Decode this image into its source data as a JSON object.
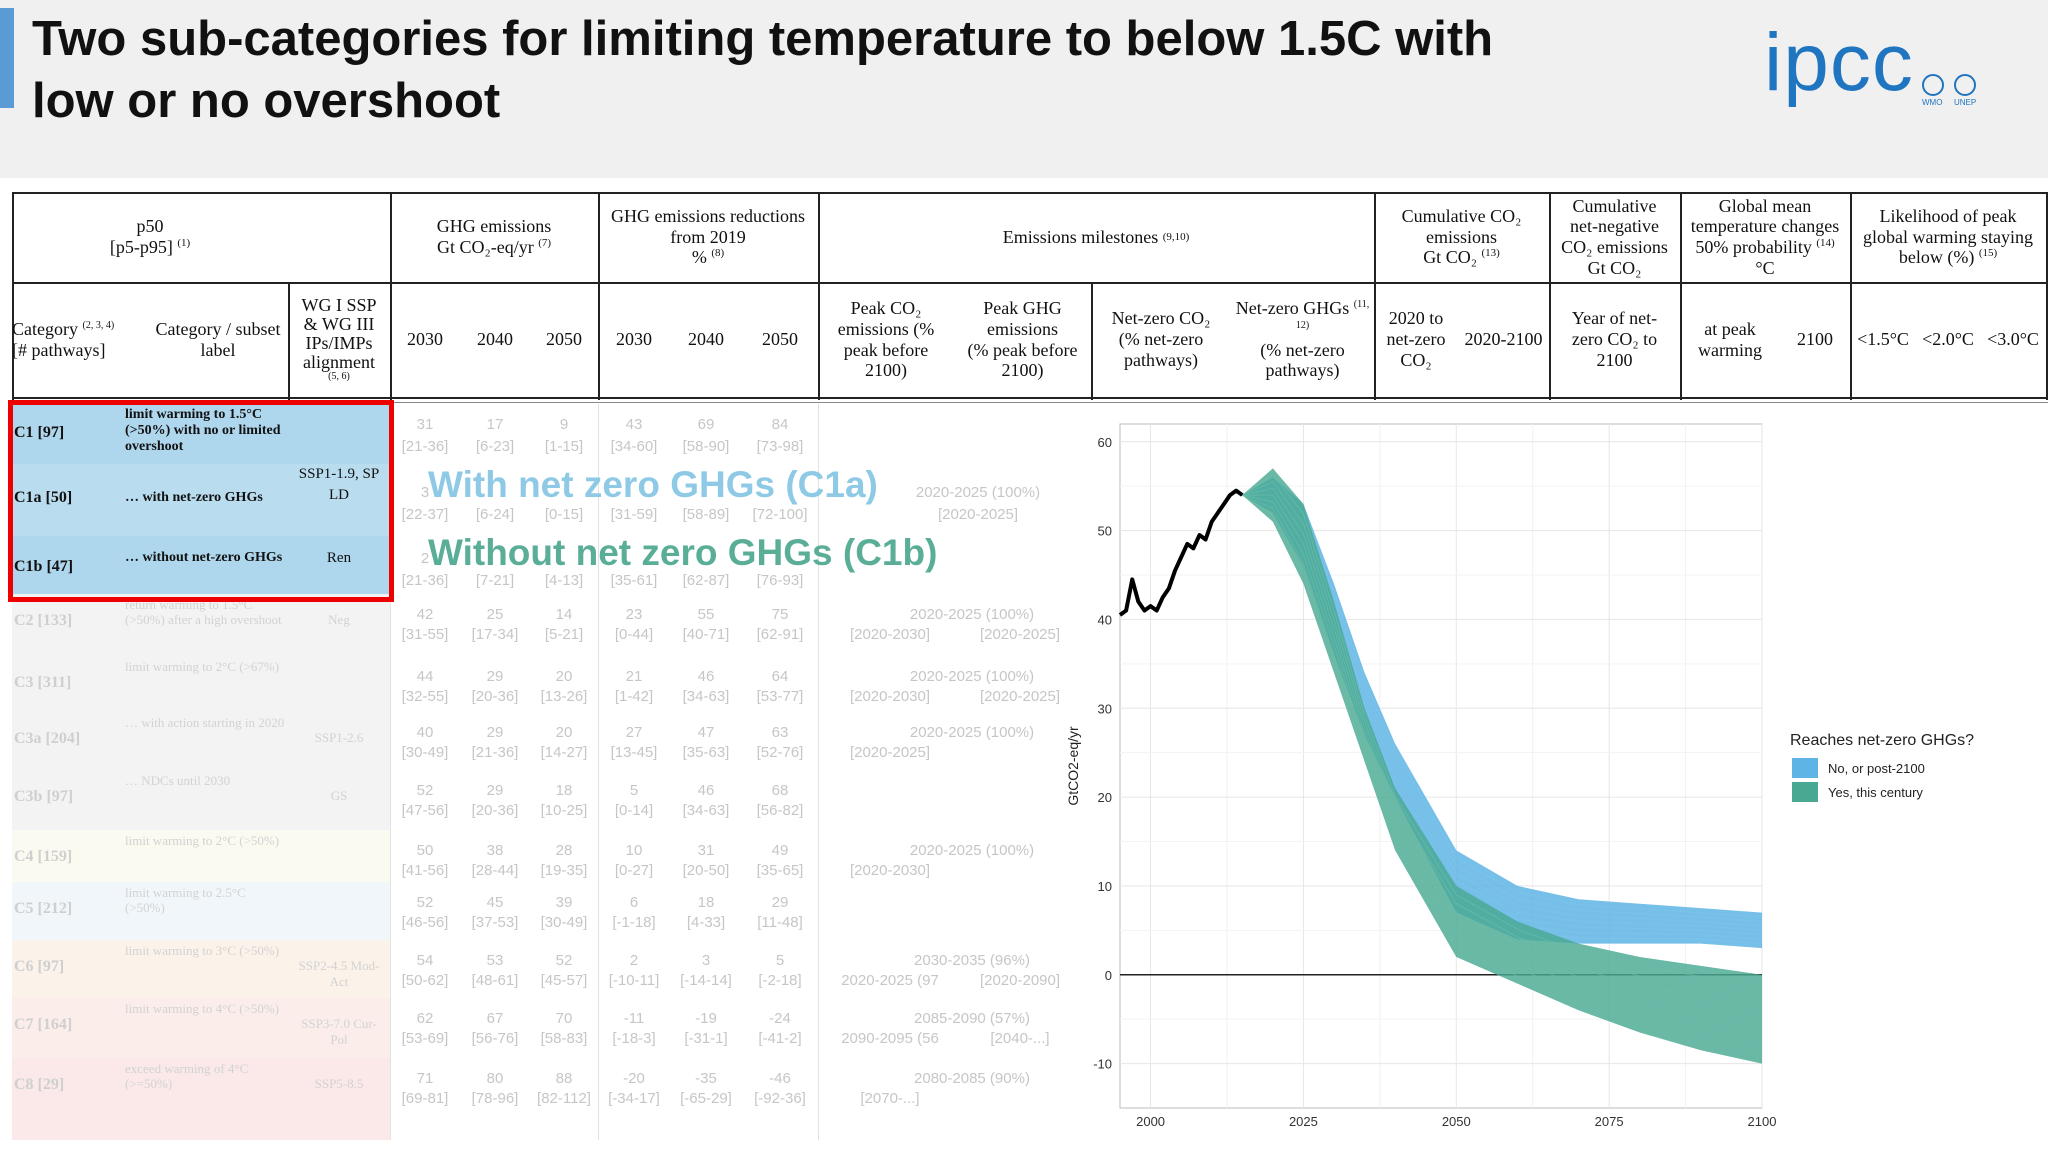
{
  "slide": {
    "title": "Two sub-categories for limiting temperature to below 1.5C with\nlow or no overshoot",
    "accent_color": "#5b9bd5",
    "logo": {
      "text": "ipcc",
      "badges": [
        "WMO",
        "UNEP"
      ],
      "color": "#1f75c0"
    }
  },
  "table": {
    "headers": {
      "p50": "p50",
      "p5p95": "[p5-p95]",
      "p5p95_note": "(1)",
      "ghg_emissions": "GHG emissions",
      "ghg_emissions_unit": "Gt CO₂-eq/yr",
      "ghg_emissions_note": "(7)",
      "ghg_reductions": "GHG emissions reductions",
      "ghg_reductions_from": "from 2019",
      "ghg_reductions_unit": "%",
      "ghg_reductions_note": "(8)",
      "milestones": "Emissions milestones",
      "milestones_note": "(9,10)",
      "cum_co2": "Cumulative CO₂",
      "cum_co2_line2": "emissions",
      "cum_co2_unit": "Gt CO₂",
      "cum_co2_note": "(13)",
      "cum_neg": "Cumulative",
      "cum_neg_line2": "net-negative",
      "cum_neg_line3": "CO₂ emissions",
      "cum_neg_unit": "Gt CO₂",
      "gmt": "Global mean",
      "gmt_line2": "temperature changes",
      "gmt_line3": "50% probability",
      "gmt_note": "(14)",
      "gmt_unit": "°C",
      "likelihood": "Likelihood of peak",
      "likelihood_line2": "global warming staying",
      "likelihood_line3": "below (%)",
      "likelihood_note": "(15)",
      "category": "Category",
      "category_note": "(2, 3, 4)",
      "pathways": "[# pathways]",
      "subset_label": "Category / subset",
      "subset_label2": "label",
      "wg": "WG I SSP",
      "wg2": "& WG III",
      "wg3": "IPs/IMPs",
      "wg4": "alignment",
      "wg_note": "(5, 6)",
      "y2030": "2030",
      "y2040": "2040",
      "y2050": "2050",
      "r2030": "2030",
      "r2040": "2040",
      "r2050": "2050",
      "peak_co2": "Peak CO₂",
      "peak_co2_2": "emissions (%",
      "peak_co2_3": "peak before",
      "peak_co2_4": "2100)",
      "peak_ghg": "Peak GHG",
      "peak_ghg_2": "emissions",
      "peak_ghg_3": "(% peak before",
      "peak_ghg_4": "2100)",
      "nz_co2": "Net-zero CO₂",
      "nz_co2_2": "(% net-zero",
      "nz_co2_3": "pathways)",
      "nz_ghg": "Net-zero GHGs",
      "nz_ghg_note": "(11, 12)",
      "nz_ghg_2": "(% net-zero",
      "nz_ghg_3": "pathways)",
      "cum_2020": "2020 to",
      "cum_2020_2": "net-zero",
      "cum_2020_3": "CO₂",
      "cum_2100": "2020-2100",
      "year_neg": "Year of net-",
      "year_neg_2": "zero CO₂ to",
      "year_neg_3": "2100",
      "at_peak": "at peak",
      "at_peak_2": "warming",
      "t2100": "2100",
      "lt15": "<1.5°C",
      "lt20": "<2.0°C",
      "lt30": "<3.0°C"
    },
    "highlight_rows": [
      {
        "category": "C1 [97]",
        "label": "limit warming to 1.5°C (>50%) with no or limited overshoot",
        "ssp": "",
        "bg": "#aed6ec"
      },
      {
        "category": "C1a [50]",
        "label": "… with net-zero GHGs",
        "ssp": "SSP1-1.9, SP LD",
        "bg": "#b9dcef"
      },
      {
        "category": "C1b [47]",
        "label": "… without net-zero GHGs",
        "ssp": "Ren",
        "bg": "#aed6ec"
      }
    ],
    "faded_rows": [
      {
        "category": "C2 [133]",
        "label": "return warming to 1.5°C (>50%) after a high overshoot",
        "ssp": "Neg",
        "bg": "#f3f3f3",
        "ghg": [
          "42",
          "25",
          "14"
        ],
        "ghg_r": [
          "[31-55]",
          "[17-34]",
          "[5-21]"
        ],
        "red": [
          "23",
          "55",
          "75"
        ],
        "red_r": [
          "[0-44]",
          "[40-71]",
          "[62-91]"
        ],
        "ms1": "2020-2025 (100%)",
        "ms2": "[2020-2030]",
        "ms3": "[2020-2025]"
      },
      {
        "category": "C3 [311]",
        "label": "limit warming to 2°C (>67%)",
        "ssp": "",
        "bg": "#f3f3f3",
        "ghg": [
          "44",
          "29",
          "20"
        ],
        "ghg_r": [
          "[32-55]",
          "[20-36]",
          "[13-26]"
        ],
        "red": [
          "21",
          "46",
          "64"
        ],
        "red_r": [
          "[1-42]",
          "[34-63]",
          "[53-77]"
        ],
        "ms1": "2020-2025 (100%)",
        "ms2": "[2020-2030]",
        "ms3": "[2020-2025]"
      },
      {
        "category": "C3a [204]",
        "label": "… with action starting in 2020",
        "ssp": "SSP1-2.6",
        "bg": "#f3f3f3",
        "ghg": [
          "40",
          "29",
          "20"
        ],
        "ghg_r": [
          "[30-49]",
          "[21-36]",
          "[14-27]"
        ],
        "red": [
          "27",
          "47",
          "63"
        ],
        "red_r": [
          "[13-45]",
          "[35-63]",
          "[52-76]"
        ],
        "ms1": "2020-2025 (100%)",
        "ms2": "[2020-2025]",
        "ms3": ""
      },
      {
        "category": "C3b [97]",
        "label": "… NDCs until 2030",
        "ssp": "GS",
        "bg": "#f3f3f3",
        "ghg": [
          "52",
          "29",
          "18"
        ],
        "ghg_r": [
          "[47-56]",
          "[20-36]",
          "[10-25]"
        ],
        "red": [
          "5",
          "46",
          "68"
        ],
        "red_r": [
          "[0-14]",
          "[34-63]",
          "[56-82]"
        ],
        "ms1": "",
        "ms2": "",
        "ms3": ""
      },
      {
        "category": "C4 [159]",
        "label": "limit warming to 2°C (>50%)",
        "ssp": "",
        "bg": "#fbfaf0",
        "ghg": [
          "50",
          "38",
          "28"
        ],
        "ghg_r": [
          "[41-56]",
          "[28-44]",
          "[19-35]"
        ],
        "red": [
          "10",
          "31",
          "49"
        ],
        "red_r": [
          "[0-27]",
          "[20-50]",
          "[35-65]"
        ],
        "ms1": "2020-2025 (100%)",
        "ms2": "[2020-2030]",
        "ms3": ""
      },
      {
        "category": "C5 [212]",
        "label": "limit warming to 2.5°C (>50%)",
        "ssp": "",
        "bg": "#f1f6fa",
        "ghg": [
          "52",
          "45",
          "39"
        ],
        "ghg_r": [
          "[46-56]",
          "[37-53]",
          "[30-49]"
        ],
        "red": [
          "6",
          "18",
          "29"
        ],
        "red_r": [
          "[-1-18]",
          "[4-33]",
          "[11-48]"
        ],
        "ms1": "",
        "ms2": "",
        "ms3": ""
      },
      {
        "category": "C6 [97]",
        "label": "limit warming to 3°C (>50%)",
        "ssp": "SSP2-4.5 Mod-Act",
        "bg": "#fbf2ea",
        "ghg": [
          "54",
          "53",
          "52"
        ],
        "ghg_r": [
          "[50-62]",
          "[48-61]",
          "[45-57]"
        ],
        "red": [
          "2",
          "3",
          "5"
        ],
        "red_r": [
          "[-10-11]",
          "[-14-14]",
          "[-2-18]"
        ],
        "ms1": "2030-2035 (96%)",
        "ms2": "2020-2025 (97",
        "ms3": "[2020-2090]"
      },
      {
        "category": "C7 [164]",
        "label": "limit warming to 4°C (>50%)",
        "ssp": "SSP3-7.0 Cur-Pol",
        "bg": "#fbeeea",
        "ghg": [
          "62",
          "67",
          "70"
        ],
        "ghg_r": [
          "[53-69]",
          "[56-76]",
          "[58-83]"
        ],
        "red": [
          "-11",
          "-19",
          "-24"
        ],
        "red_r": [
          "[-18-3]",
          "[-31-1]",
          "[-41-2]"
        ],
        "ms1": "2085-2090 (57%)",
        "ms2": "2090-2095 (56",
        "ms3": "[2040-...]"
      },
      {
        "category": "C8 [29]",
        "label": "exceed warming of 4°C (>=50%)",
        "ssp": "SSP5-8.5",
        "bg": "#fbe9e9",
        "ghg": [
          "71",
          "80",
          "88"
        ],
        "ghg_r": [
          "[69-81]",
          "[78-96]",
          "[82-112]"
        ],
        "red": [
          "-20",
          "-35",
          "-46"
        ],
        "red_r": [
          "[-34-17]",
          "[-65-29]",
          "[-92-36]"
        ],
        "ms1": "2080-2085 (90%)",
        "ms2": "[2070-...]",
        "ms3": ""
      }
    ],
    "top_faded_values": {
      "c1_ghg": [
        "31",
        "17",
        "9"
      ],
      "c1_ghg_r": [
        "[21-36]",
        "[6-23]",
        "[1-15]"
      ],
      "c1_red": [
        "43",
        "69",
        "84"
      ],
      "c1_red_r": [
        "[34-60]",
        "[58-90]",
        "[73-98]"
      ],
      "c1a_ghg": [
        "3"
      ],
      "c1a_ghg_r": [
        "[22-37]",
        "[6-24]",
        "[0-15]"
      ],
      "c1a_red_r": [
        "[31-59]",
        "[58-89]",
        "[72-100]"
      ],
      "c1a_ms1": "2020-2025 (100%)",
      "c1a_ms2": "[2020-2025]",
      "c1b_ghg": [
        "2"
      ],
      "c1b_ghg_r": [
        "[21-36]",
        "[7-21]",
        "[4-13]"
      ],
      "c1b_red_r": [
        "[35-61]",
        "[62-87]",
        "[76-93]"
      ]
    }
  },
  "overlay": {
    "c1a_text": "With net zero GHGs (C1a)",
    "c1a_color": "#8ecae6",
    "c1b_text": "Without net zero GHGs (C1b)",
    "c1b_color": "#5aae98"
  },
  "chart_data": {
    "type": "area",
    "title": "",
    "xlabel": "",
    "ylabel": "GtCO2-eq/yr",
    "xlim": [
      1995,
      2100
    ],
    "ylim": [
      -15,
      62
    ],
    "xticks": [
      "2000",
      "2025",
      "2050",
      "2075",
      "2100"
    ],
    "yticks": [
      "-10",
      "0",
      "10",
      "20",
      "30",
      "40",
      "50",
      "60"
    ],
    "grid": true,
    "legend_title": "Reaches net-zero GHGs?",
    "legend_position": "right",
    "series": [
      {
        "name": "No, or post-2100",
        "color": "#5eb4e4",
        "x": [
          2015,
          2020,
          2025,
          2030,
          2035,
          2040,
          2050,
          2060,
          2070,
          2080,
          2090,
          2100
        ],
        "upper": [
          54,
          56,
          53,
          44,
          34,
          26,
          14,
          10,
          8.5,
          8,
          7.5,
          7
        ],
        "lower": [
          54,
          52,
          46,
          36,
          27,
          20,
          7,
          4,
          3.5,
          3.5,
          3.5,
          3
        ]
      },
      {
        "name": "Yes, this century",
        "color": "#49a892",
        "x": [
          2015,
          2020,
          2025,
          2030,
          2035,
          2040,
          2050,
          2060,
          2070,
          2080,
          2090,
          2100
        ],
        "upper": [
          54,
          57,
          53,
          42,
          30,
          21,
          10,
          6,
          3.5,
          2,
          1,
          0
        ],
        "lower": [
          54,
          51,
          44,
          34,
          24,
          14,
          2,
          -1,
          -4,
          -6.5,
          -8.5,
          -10
        ]
      },
      {
        "name": "Historical",
        "color": "#000000",
        "x": [
          1995,
          1996,
          1997,
          1998,
          1999,
          2000,
          2001,
          2002,
          2003,
          2004,
          2005,
          2006,
          2007,
          2008,
          2009,
          2010,
          2011,
          2012,
          2013,
          2014,
          2015
        ],
        "values": [
          40.5,
          41,
          44.5,
          42,
          41,
          41.5,
          41,
          42.5,
          43.5,
          45.5,
          47,
          48.5,
          48,
          49.5,
          49,
          51,
          52,
          53,
          54,
          54.5,
          54
        ]
      }
    ]
  }
}
